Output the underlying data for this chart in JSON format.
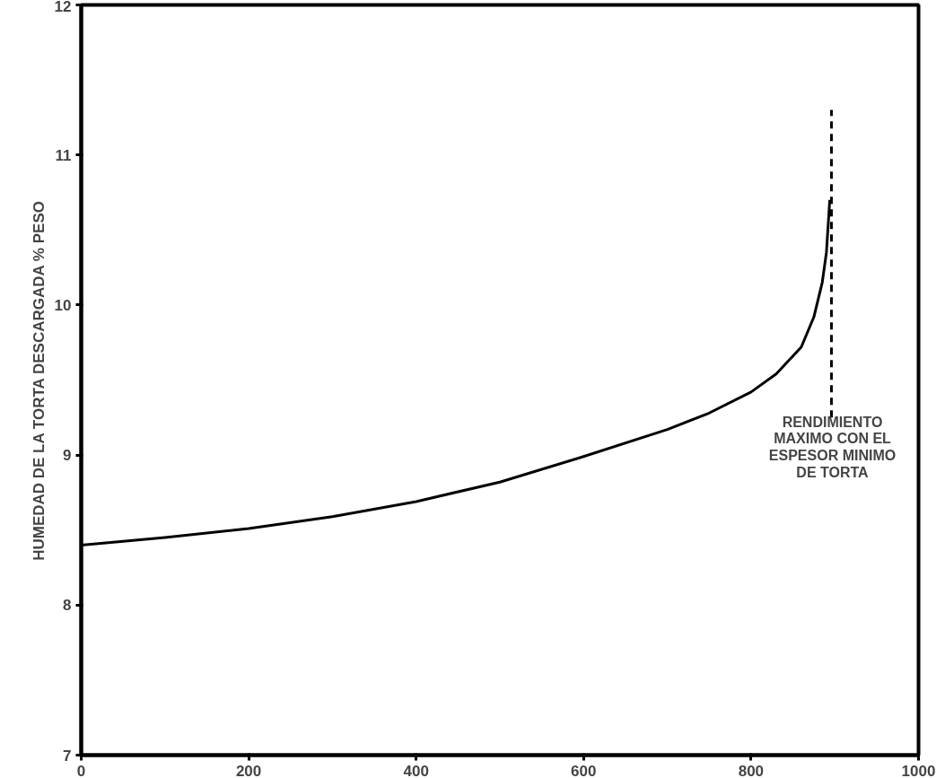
{
  "chart_data": {
    "type": "line",
    "ylabel": "HUMEDAD DE LA TORTA DESCARGADA % PESO",
    "xlim": [
      0,
      1000
    ],
    "ylim": [
      7,
      12
    ],
    "xticks": [
      0,
      200,
      400,
      600,
      800,
      1000
    ],
    "yticks": [
      7,
      8,
      9,
      10,
      11,
      12
    ],
    "grid": false,
    "series": [
      {
        "color": "#000000",
        "line_style": "solid",
        "x": [
          0,
          100,
          200,
          300,
          400,
          500,
          600,
          700,
          750,
          800,
          830,
          860,
          875,
          885,
          890,
          894
        ],
        "values": [
          8.4,
          8.45,
          8.51,
          8.59,
          8.69,
          8.82,
          8.99,
          9.17,
          9.28,
          9.42,
          9.54,
          9.72,
          9.92,
          10.15,
          10.35,
          10.7
        ]
      },
      {
        "color": "#000000",
        "line_style": "dashed",
        "x": [
          896,
          896
        ],
        "values": [
          9.25,
          11.3
        ]
      }
    ],
    "annotations": [
      "RENDIMIENTO\nMAXIMO CON EL\nESPESOR MINIMO\nDE TORTA"
    ]
  }
}
